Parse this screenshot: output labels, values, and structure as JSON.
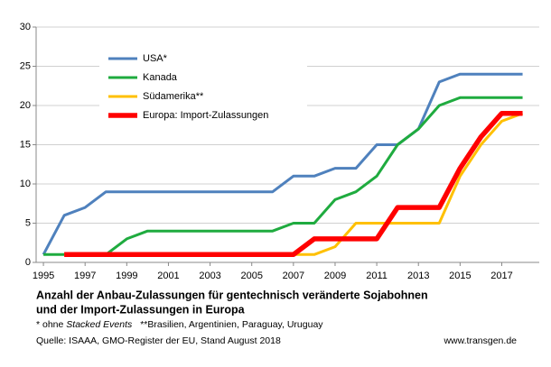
{
  "chart_data": {
    "type": "line",
    "title": [
      "Anzahl der Anbau-Zulassungen für gentechnisch veränderte Sojabohnen",
      "und der Import-Zulassungen in Europa"
    ],
    "notes": [
      "* ohne",
      "Stacked Events",
      "**Brasilien, Argentinien, Paraguay, Uruguay"
    ],
    "source": "Quelle: ISAAA, GMO-Register der EU, Stand August 2018",
    "website": "www.transgen.de",
    "x": [
      1995,
      1996,
      1997,
      1998,
      1999,
      2000,
      2001,
      2002,
      2003,
      2004,
      2005,
      2006,
      2007,
      2008,
      2009,
      2010,
      2011,
      2012,
      2013,
      2014,
      2015,
      2016,
      2017,
      2018
    ],
    "series": [
      {
        "name": "USA*",
        "color": "#4f81bd",
        "line_width": 3,
        "values": [
          1,
          6,
          7,
          9,
          9,
          9,
          9,
          9,
          9,
          9,
          9,
          9,
          11,
          11,
          12,
          12,
          15,
          15,
          17,
          23,
          24,
          24,
          24,
          24
        ]
      },
      {
        "name": "Kanada",
        "color": "#1fab3f",
        "line_width": 3,
        "values": [
          1,
          1,
          1,
          1,
          3,
          4,
          4,
          4,
          4,
          4,
          4,
          4,
          5,
          5,
          8,
          9,
          11,
          15,
          17,
          20,
          21,
          21,
          21,
          21
        ]
      },
      {
        "name": "Südamerika**",
        "color": "#ffc000",
        "line_width": 3,
        "values": [
          null,
          1,
          1,
          1,
          1,
          1,
          1,
          1,
          1,
          1,
          1,
          1,
          1,
          1,
          2,
          5,
          5,
          5,
          5,
          5,
          11,
          15,
          18,
          19
        ]
      },
      {
        "name": "Europa: Import-Zulassungen",
        "color": "#ff0000",
        "line_width": 5.5,
        "values": [
          null,
          1,
          1,
          1,
          1,
          1,
          1,
          1,
          1,
          1,
          1,
          1,
          1,
          3,
          3,
          3,
          3,
          7,
          7,
          7,
          12,
          16,
          19,
          19
        ]
      }
    ],
    "xlim": [
      1994.65,
      2018.8
    ],
    "xticks": [
      1995,
      1997,
      1999,
      2001,
      2003,
      2005,
      2007,
      2009,
      2011,
      2013,
      2015,
      2017
    ],
    "ylim": [
      0,
      30
    ],
    "yticks": [
      0,
      5,
      10,
      15,
      20,
      25,
      30
    ],
    "grid": true
  }
}
